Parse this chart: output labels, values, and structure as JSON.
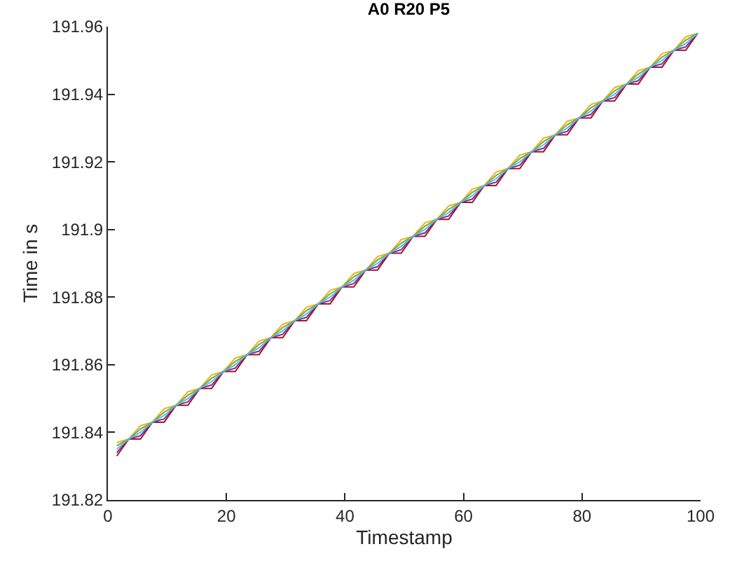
{
  "chart_data": {
    "type": "line",
    "title": "A0 R20 P5",
    "xlabel": "Timestamp",
    "ylabel": "Time in s",
    "x": [
      1.5,
      3.5,
      5.5,
      7.5,
      9.5,
      11.5,
      13.5,
      15.5,
      17.5,
      19.5,
      21.5,
      23.5,
      25.5,
      27.5,
      29.5,
      31.5,
      33.5,
      35.5,
      37.5,
      39.5,
      41.5,
      43.5,
      45.5,
      47.5,
      49.5,
      51.5,
      53.5,
      55.5,
      57.5,
      59.5,
      61.5,
      63.5,
      65.5,
      67.5,
      69.5,
      71.5,
      73.5,
      75.5,
      77.5,
      79.5,
      81.5,
      83.5,
      85.5,
      87.5,
      89.5,
      91.5,
      93.5,
      95.5,
      97.5,
      99.5
    ],
    "series": [
      {
        "color": "#edb120",
        "values": [
          191.837,
          191.838,
          191.842,
          191.843,
          191.847,
          191.848,
          191.852,
          191.853,
          191.857,
          191.858,
          191.862,
          191.863,
          191.867,
          191.868,
          191.872,
          191.873,
          191.877,
          191.878,
          191.882,
          191.883,
          191.887,
          191.888,
          191.892,
          191.893,
          191.897,
          191.898,
          191.902,
          191.903,
          191.907,
          191.908,
          191.912,
          191.913,
          191.917,
          191.918,
          191.922,
          191.923,
          191.927,
          191.928,
          191.932,
          191.933,
          191.937,
          191.938,
          191.942,
          191.943,
          191.947,
          191.948,
          191.952,
          191.953,
          191.957,
          191.958
        ]
      },
      {
        "color": "#77ac30",
        "values": [
          191.836,
          191.838,
          191.841,
          191.843,
          191.846,
          191.848,
          191.851,
          191.853,
          191.856,
          191.858,
          191.861,
          191.863,
          191.866,
          191.868,
          191.871,
          191.873,
          191.876,
          191.878,
          191.881,
          191.883,
          191.886,
          191.888,
          191.891,
          191.893,
          191.896,
          191.898,
          191.901,
          191.903,
          191.906,
          191.908,
          191.911,
          191.913,
          191.916,
          191.918,
          191.921,
          191.923,
          191.926,
          191.928,
          191.931,
          191.933,
          191.936,
          191.938,
          191.941,
          191.943,
          191.946,
          191.948,
          191.951,
          191.953,
          191.956,
          191.958
        ]
      },
      {
        "color": "#7e2f8e",
        "values": [
          191.834,
          191.838,
          191.839,
          191.843,
          191.844,
          191.848,
          191.849,
          191.853,
          191.854,
          191.858,
          191.859,
          191.863,
          191.864,
          191.868,
          191.869,
          191.873,
          191.874,
          191.878,
          191.879,
          191.883,
          191.884,
          191.888,
          191.889,
          191.893,
          191.894,
          191.898,
          191.899,
          191.903,
          191.904,
          191.908,
          191.909,
          191.913,
          191.914,
          191.918,
          191.919,
          191.923,
          191.924,
          191.928,
          191.929,
          191.933,
          191.934,
          191.938,
          191.939,
          191.943,
          191.944,
          191.948,
          191.949,
          191.953,
          191.954,
          191.958
        ]
      },
      {
        "color": "#a2142f",
        "values": [
          191.833,
          191.838,
          191.838,
          191.843,
          191.843,
          191.848,
          191.848,
          191.853,
          191.853,
          191.858,
          191.858,
          191.863,
          191.863,
          191.868,
          191.868,
          191.873,
          191.873,
          191.878,
          191.878,
          191.883,
          191.883,
          191.888,
          191.888,
          191.893,
          191.893,
          191.898,
          191.898,
          191.903,
          191.903,
          191.908,
          191.908,
          191.913,
          191.913,
          191.918,
          191.918,
          191.923,
          191.923,
          191.928,
          191.928,
          191.933,
          191.933,
          191.938,
          191.938,
          191.943,
          191.943,
          191.948,
          191.948,
          191.953,
          191.953,
          191.958
        ]
      },
      {
        "color": "#4dbeee",
        "values": [
          191.835,
          191.838,
          191.84,
          191.843,
          191.845,
          191.848,
          191.85,
          191.853,
          191.855,
          191.858,
          191.86,
          191.863,
          191.865,
          191.868,
          191.87,
          191.873,
          191.875,
          191.878,
          191.88,
          191.883,
          191.885,
          191.888,
          191.89,
          191.893,
          191.895,
          191.898,
          191.9,
          191.903,
          191.905,
          191.908,
          191.91,
          191.913,
          191.915,
          191.918,
          191.92,
          191.923,
          191.925,
          191.928,
          191.93,
          191.933,
          191.935,
          191.938,
          191.94,
          191.943,
          191.945,
          191.948,
          191.95,
          191.953,
          191.955,
          191.958
        ]
      }
    ],
    "xlim": [
      0,
      100
    ],
    "xticks": [
      0,
      20,
      40,
      60,
      80,
      100
    ],
    "ylim": [
      191.82,
      191.96
    ],
    "yticks": [
      191.82,
      191.84,
      191.86,
      191.88,
      191.9,
      191.92,
      191.94,
      191.96
    ]
  }
}
